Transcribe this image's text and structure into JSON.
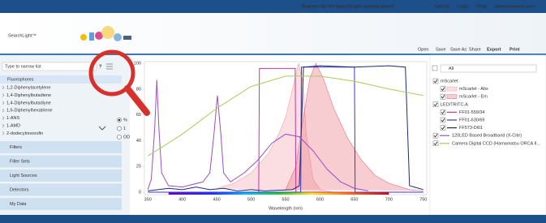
{
  "header": {
    "links": [
      "Register for the SearchLight spectra viewer",
      "Cart (1)",
      "Login",
      "Help",
      "www.semrock.com"
    ]
  },
  "logo": "SearchLight™",
  "toolbar": [
    "Open",
    "Save",
    "Save As",
    "Share",
    "Export",
    "Print"
  ],
  "left_panel": {
    "search_placeholder": "Type to narrow list",
    "help": "?",
    "category": "Fluorophores",
    "items": [
      "1,2-Diphenylacetylene",
      "1,4-Diphenylbutadiene",
      "1,4-Diphenylbutadiyne",
      "1,6-Diphenylhexatriene",
      "1-ANS",
      "1-AMD",
      "2-dodecylresorufin"
    ],
    "sections": [
      "Filters",
      "Filter Sets",
      "Light Sources",
      "Detectors",
      "My Data"
    ]
  },
  "units": {
    "options": [
      "%",
      "1",
      "OD"
    ]
  },
  "right_panel": {
    "filter": "All",
    "groups": [
      "mScarlet",
      "LED/TRITC-A"
    ]
  },
  "chart_data": {
    "type": "line",
    "x_label": "Wavelength (nm)",
    "xlim": [
      345,
      755
    ],
    "ylim": [
      0,
      100
    ],
    "xticks": [
      350,
      400,
      450,
      500,
      550,
      600,
      650,
      700,
      750
    ],
    "yticks": [
      0,
      20,
      40,
      60,
      80,
      100
    ],
    "grid": false,
    "series": [
      {
        "name": "mScarlet - Abs",
        "color": "#f2a0aa",
        "fill": true,
        "x": [
          450,
          475,
          500,
          525,
          540,
          550,
          560,
          569,
          575,
          580,
          590,
          600,
          620
        ],
        "values": [
          3,
          7,
          15,
          30,
          45,
          58,
          80,
          100,
          85,
          45,
          10,
          2,
          0
        ]
      },
      {
        "name": "mScarlet - Em",
        "color": "#e8707f",
        "fill": true,
        "x": [
          550,
          565,
          575,
          585,
          594,
          605,
          620,
          640,
          660,
          680,
          700,
          730,
          750
        ],
        "values": [
          2,
          20,
          55,
          88,
          100,
          88,
          65,
          42,
          25,
          13,
          7,
          2,
          1
        ]
      },
      {
        "name": "FF01-559/34",
        "color": "#c4369f",
        "fill": false,
        "x": [
          350,
          511,
          512,
          564,
          565,
          750
        ],
        "values": [
          0,
          0,
          96,
          96,
          0,
          0
        ]
      },
      {
        "name": "FF01-630/69",
        "color": "#3a3ac0",
        "fill": false,
        "x": [
          350,
          572,
          573,
          650,
          651,
          750
        ],
        "values": [
          0,
          0,
          97,
          97,
          0,
          0
        ]
      },
      {
        "name": "FF573-Di01",
        "color": "#1c2a78",
        "fill": false,
        "x": [
          350,
          380,
          400,
          420,
          440,
          460,
          480,
          500,
          520,
          560,
          570,
          576,
          600,
          650,
          700,
          724,
          730,
          750
        ],
        "values": [
          1,
          3,
          2,
          4,
          2,
          3,
          1,
          2,
          1,
          2,
          5,
          97,
          98,
          97,
          98,
          97,
          5,
          2
        ]
      },
      {
        "name": "120LED Based Broadband (X-Cite)",
        "color": "#9b4fc0",
        "fill": false,
        "x": [
          350,
          355,
          360,
          363,
          366,
          370,
          380,
          400,
          430,
          440,
          446,
          451,
          456,
          460,
          470,
          490,
          510,
          530,
          550,
          570,
          590,
          610,
          630,
          650,
          670
        ],
        "values": [
          2,
          10,
          50,
          87,
          50,
          15,
          5,
          4,
          8,
          15,
          45,
          75,
          45,
          15,
          8,
          15,
          25,
          38,
          45,
          43,
          32,
          18,
          8,
          3,
          1
        ]
      },
      {
        "name": "Camera Digital CCD (Hamamatsu ORCA II...",
        "color": "#a8cc5a",
        "fill": false,
        "x": [
          350,
          400,
          450,
          500,
          550,
          600,
          650,
          700,
          750
        ],
        "values": [
          28,
          45,
          65,
          82,
          90,
          90,
          86,
          80,
          75
        ]
      }
    ]
  }
}
